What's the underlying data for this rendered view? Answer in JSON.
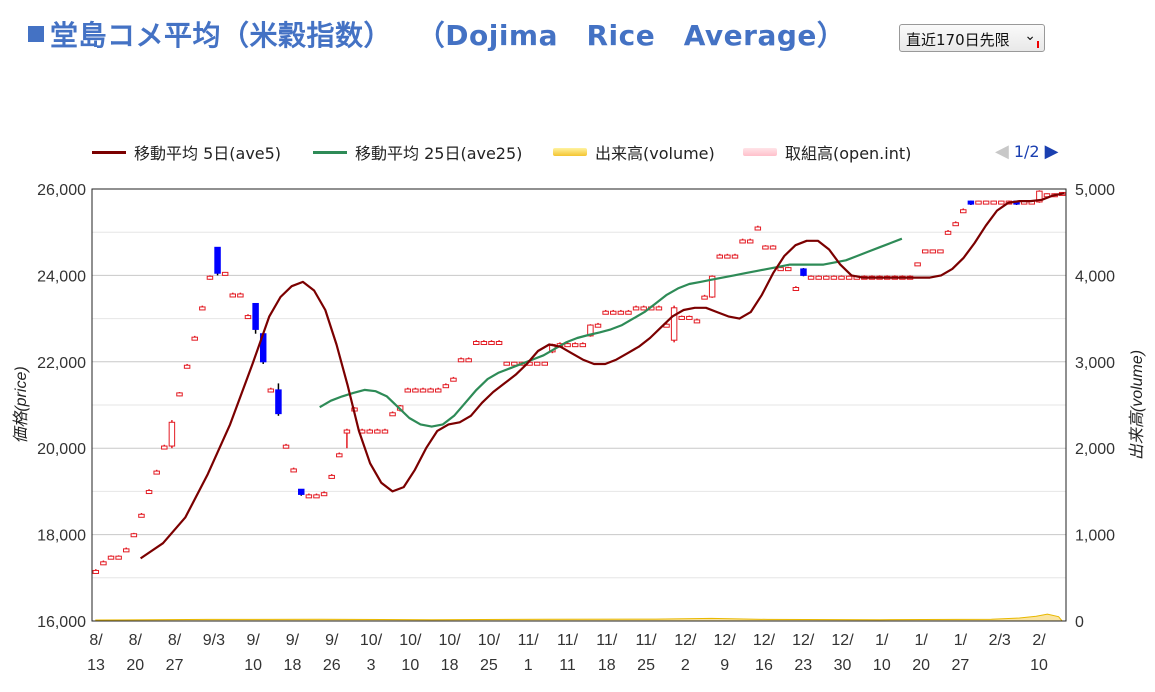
{
  "header": {
    "title": "堂島コメ平均（米穀指数）　 （Dojima　Rice　Average）",
    "period_select": "直近170日先限"
  },
  "legend": {
    "ave5": "移動平均 5日(ave5)",
    "ave25": "移動平均 25日(ave25)",
    "volume": "出来高(volume)",
    "openint": "取組高(open.int)"
  },
  "pager": {
    "page": "1/2"
  },
  "colors": {
    "ave5": "#7B0000",
    "ave25": "#2E8B57",
    "up": "#E31B23",
    "down": "#0000FF",
    "volume": "#F4C430",
    "openint": "#FFC0CB",
    "title": "#4472C4"
  },
  "chart_data": {
    "type": "candlestick",
    "ylabel_left": "価格(price)",
    "ylabel_right": "出来高(volume)",
    "ylim": [
      16000,
      26000
    ],
    "ylim_right": [
      0,
      5000
    ],
    "y_ticks": [
      "16,000",
      "18,000",
      "20,000",
      "22,000",
      "24,000",
      "26,000"
    ],
    "y_ticks_right": [
      "0",
      "1,000",
      "2,000",
      "3,000",
      "4,000",
      "5,000"
    ],
    "x_ticks": [
      [
        "8/",
        "13"
      ],
      [
        "8/",
        "20"
      ],
      [
        "8/",
        "27"
      ],
      [
        "9/3",
        ""
      ],
      [
        "9/",
        "10"
      ],
      [
        "9/",
        "18"
      ],
      [
        "9/",
        "26"
      ],
      [
        "10/",
        "3"
      ],
      [
        "10/",
        "10"
      ],
      [
        "10/",
        "18"
      ],
      [
        "10/",
        "25"
      ],
      [
        "11/",
        "1"
      ],
      [
        "11/",
        "11"
      ],
      [
        "11/",
        "18"
      ],
      [
        "11/",
        "25"
      ],
      [
        "12/",
        "2"
      ],
      [
        "12/",
        "9"
      ],
      [
        "12/",
        "16"
      ],
      [
        "12/",
        "23"
      ],
      [
        "12/",
        "30"
      ],
      [
        "1/",
        "10"
      ],
      [
        "1/",
        "20"
      ],
      [
        "1/",
        "27"
      ],
      [
        "2/3",
        ""
      ],
      [
        "2/",
        "10"
      ]
    ],
    "candles": [
      [
        17130,
        17170,
        17100,
        17200
      ],
      [
        17330,
        17370,
        17300,
        17400
      ],
      [
        17480,
        17500,
        17470,
        17520
      ],
      [
        17480,
        17500,
        17470,
        17520
      ],
      [
        17630,
        17670,
        17600,
        17700
      ],
      [
        17980,
        18020,
        17960,
        18040
      ],
      [
        18430,
        18470,
        18400,
        18500
      ],
      [
        18980,
        19020,
        18950,
        19050
      ],
      [
        19430,
        19470,
        19400,
        19500
      ],
      [
        20000,
        20050,
        19980,
        20080
      ],
      [
        20050,
        20600,
        20000,
        20650
      ],
      [
        21230,
        21280,
        21200,
        21300
      ],
      [
        21880,
        21920,
        21850,
        21950
      ],
      [
        22530,
        22570,
        22500,
        22600
      ],
      [
        23230,
        23270,
        23200,
        23300
      ],
      [
        23930,
        23980,
        23900,
        24000
      ],
      [
        24650,
        24050,
        24000,
        24650
      ],
      [
        24030,
        24070,
        24000,
        24080
      ],
      [
        23530,
        23570,
        23500,
        23600
      ],
      [
        23530,
        23570,
        23500,
        23600
      ],
      [
        23030,
        23070,
        23000,
        23100
      ],
      [
        23350,
        22750,
        22650,
        23350
      ],
      [
        22650,
        22000,
        21950,
        22650
      ],
      [
        21330,
        21370,
        21300,
        21400
      ],
      [
        21350,
        20800,
        20750,
        21500
      ],
      [
        20030,
        20070,
        20000,
        20100
      ],
      [
        19480,
        19520,
        19450,
        19550
      ],
      [
        19050,
        18930,
        18900,
        19050
      ],
      [
        18880,
        18920,
        18850,
        18950
      ],
      [
        18880,
        18920,
        18850,
        18950
      ],
      [
        18930,
        18970,
        18900,
        19000
      ],
      [
        19330,
        19370,
        19300,
        19400
      ],
      [
        19830,
        19870,
        19800,
        19900
      ],
      [
        20380,
        20420,
        20000,
        20450
      ],
      [
        20900,
        20930,
        20880,
        20950
      ],
      [
        20380,
        20420,
        20350,
        20450
      ],
      [
        20380,
        20420,
        20350,
        20450
      ],
      [
        20380,
        20420,
        20350,
        20450
      ],
      [
        20380,
        20420,
        20350,
        20450
      ],
      [
        20780,
        20820,
        20750,
        20850
      ],
      [
        20880,
        20980,
        20850,
        21000
      ],
      [
        21330,
        21370,
        21300,
        21400
      ],
      [
        21330,
        21370,
        21300,
        21400
      ],
      [
        21330,
        21370,
        21300,
        21400
      ],
      [
        21330,
        21370,
        21300,
        21400
      ],
      [
        21330,
        21370,
        21300,
        21400
      ],
      [
        21430,
        21470,
        21400,
        21500
      ],
      [
        21580,
        21620,
        21550,
        21650
      ],
      [
        22030,
        22070,
        22000,
        22100
      ],
      [
        22030,
        22070,
        22000,
        22100
      ],
      [
        22430,
        22470,
        22400,
        22500
      ],
      [
        22430,
        22470,
        22400,
        22500
      ],
      [
        22430,
        22470,
        22400,
        22500
      ],
      [
        22430,
        22470,
        22400,
        22500
      ],
      [
        21950,
        21990,
        21930,
        22000
      ],
      [
        21950,
        21990,
        21930,
        22000
      ],
      [
        21950,
        21990,
        21930,
        22000
      ],
      [
        21950,
        21990,
        21930,
        22000
      ],
      [
        21950,
        21990,
        21930,
        22000
      ],
      [
        21950,
        21990,
        21930,
        22000
      ],
      [
        22230,
        22400,
        22200,
        22420
      ],
      [
        22380,
        22420,
        22350,
        22450
      ],
      [
        22380,
        22420,
        22350,
        22450
      ],
      [
        22380,
        22420,
        22350,
        22450
      ],
      [
        22380,
        22420,
        22350,
        22450
      ],
      [
        22600,
        22850,
        22580,
        22870
      ],
      [
        22830,
        22870,
        22800,
        22900
      ],
      [
        23130,
        23170,
        23100,
        23200
      ],
      [
        23130,
        23170,
        23100,
        23200
      ],
      [
        23130,
        23170,
        23100,
        23200
      ],
      [
        23130,
        23170,
        23100,
        23200
      ],
      [
        23230,
        23270,
        23200,
        23300
      ],
      [
        23230,
        23270,
        23200,
        23300
      ],
      [
        23230,
        23270,
        23200,
        23300
      ],
      [
        23230,
        23270,
        23200,
        23300
      ],
      [
        22830,
        22870,
        22800,
        22900
      ],
      [
        22500,
        23250,
        22450,
        23300
      ],
      [
        23000,
        23050,
        22980,
        23070
      ],
      [
        23000,
        23050,
        22980,
        23070
      ],
      [
        22930,
        22970,
        22900,
        23000
      ],
      [
        23480,
        23520,
        23450,
        23550
      ],
      [
        23500,
        23980,
        23480,
        24000
      ],
      [
        24430,
        24470,
        24400,
        24500
      ],
      [
        24430,
        24470,
        24400,
        24500
      ],
      [
        24430,
        24470,
        24400,
        24500
      ],
      [
        24780,
        24820,
        24750,
        24850
      ],
      [
        24780,
        24820,
        24750,
        24850
      ],
      [
        25080,
        25120,
        25050,
        25150
      ],
      [
        24650,
        24680,
        24620,
        24700
      ],
      [
        24650,
        24680,
        24620,
        24700
      ],
      [
        24150,
        24180,
        24120,
        24200
      ],
      [
        24150,
        24180,
        24120,
        24200
      ],
      [
        23680,
        23720,
        23650,
        23750
      ],
      [
        24150,
        24000,
        23980,
        24170
      ],
      [
        23950,
        23980,
        23920,
        24000
      ],
      [
        23950,
        23980,
        23920,
        24000
      ],
      [
        23950,
        23980,
        23920,
        24000
      ],
      [
        23950,
        23980,
        23920,
        24000
      ],
      [
        23950,
        23980,
        23920,
        24000
      ],
      [
        23950,
        23980,
        23920,
        24000
      ],
      [
        23950,
        23980,
        23920,
        24000
      ],
      [
        23950,
        23980,
        23920,
        24000
      ],
      [
        23950,
        23980,
        23920,
        24000
      ],
      [
        23950,
        23980,
        23920,
        24000
      ],
      [
        23950,
        23980,
        23920,
        24000
      ],
      [
        23950,
        23980,
        23920,
        24000
      ],
      [
        23950,
        23980,
        23920,
        24000
      ],
      [
        23950,
        23980,
        23920,
        24000
      ],
      [
        24250,
        24290,
        24230,
        24300
      ],
      [
        24550,
        24590,
        24530,
        24600
      ],
      [
        24550,
        24590,
        24530,
        24600
      ],
      [
        24550,
        24590,
        24530,
        24600
      ],
      [
        24980,
        25020,
        24950,
        25050
      ],
      [
        25180,
        25220,
        25150,
        25250
      ],
      [
        25480,
        25520,
        25450,
        25550
      ],
      [
        25720,
        25650,
        25630,
        25730
      ],
      [
        25680,
        25720,
        25650,
        25730
      ],
      [
        25680,
        25720,
        25650,
        25730
      ],
      [
        25680,
        25720,
        25650,
        25730
      ],
      [
        25680,
        25720,
        25650,
        25730
      ],
      [
        25680,
        25720,
        25650,
        25730
      ],
      [
        25720,
        25650,
        25630,
        25730
      ],
      [
        25680,
        25720,
        25650,
        25730
      ],
      [
        25680,
        25720,
        25650,
        25730
      ],
      [
        25700,
        25950,
        25680,
        25970
      ],
      [
        25850,
        25890,
        25830,
        25900
      ],
      [
        25850,
        25890,
        25830,
        25900
      ],
      [
        25880,
        25920,
        25860,
        25930
      ]
    ],
    "ave5": [
      [
        8,
        17450
      ],
      [
        12,
        17800
      ],
      [
        16,
        18400
      ],
      [
        20,
        19400
      ],
      [
        24,
        20550
      ],
      [
        28,
        21950
      ],
      [
        31,
        23050
      ],
      [
        33,
        23500
      ],
      [
        35,
        23750
      ],
      [
        37,
        23850
      ],
      [
        39,
        23650
      ],
      [
        41,
        23200
      ],
      [
        43,
        22400
      ],
      [
        45,
        21450
      ],
      [
        47,
        20400
      ],
      [
        49,
        19650
      ],
      [
        51,
        19200
      ],
      [
        53,
        19000
      ],
      [
        55,
        19100
      ],
      [
        57,
        19500
      ],
      [
        59,
        20000
      ],
      [
        61,
        20400
      ],
      [
        63,
        20550
      ],
      [
        65,
        20600
      ],
      [
        67,
        20750
      ],
      [
        69,
        21050
      ],
      [
        71,
        21300
      ],
      [
        73,
        21500
      ],
      [
        75,
        21700
      ],
      [
        77,
        21950
      ],
      [
        79,
        22250
      ],
      [
        81,
        22400
      ],
      [
        83,
        22350
      ],
      [
        85,
        22200
      ],
      [
        87,
        22050
      ],
      [
        89,
        21950
      ],
      [
        91,
        21950
      ],
      [
        93,
        22050
      ],
      [
        95,
        22200
      ],
      [
        97,
        22350
      ],
      [
        99,
        22550
      ],
      [
        101,
        22800
      ],
      [
        103,
        23050
      ],
      [
        105,
        23200
      ],
      [
        107,
        23250
      ],
      [
        109,
        23250
      ],
      [
        111,
        23150
      ],
      [
        113,
        23050
      ],
      [
        115,
        23000
      ],
      [
        117,
        23150
      ],
      [
        119,
        23550
      ],
      [
        121,
        24050
      ],
      [
        123,
        24450
      ],
      [
        125,
        24700
      ],
      [
        127,
        24800
      ],
      [
        129,
        24800
      ],
      [
        131,
        24600
      ],
      [
        133,
        24250
      ],
      [
        135,
        24000
      ],
      [
        137,
        23950
      ],
      [
        139,
        23950
      ],
      [
        141,
        23950
      ],
      [
        143,
        23950
      ],
      [
        145,
        23950
      ],
      [
        147,
        23950
      ],
      [
        149,
        23950
      ],
      [
        151,
        24000
      ],
      [
        153,
        24150
      ],
      [
        155,
        24400
      ],
      [
        157,
        24750
      ],
      [
        159,
        25150
      ],
      [
        161,
        25500
      ],
      [
        163,
        25680
      ],
      [
        165,
        25720
      ],
      [
        167,
        25720
      ],
      [
        169,
        25750
      ],
      [
        171,
        25850
      ],
      [
        173,
        25900
      ]
    ],
    "ave25": [
      [
        40,
        20950
      ],
      [
        42,
        21100
      ],
      [
        44,
        21200
      ],
      [
        46,
        21280
      ],
      [
        48,
        21350
      ],
      [
        50,
        21320
      ],
      [
        52,
        21200
      ],
      [
        54,
        20950
      ],
      [
        56,
        20700
      ],
      [
        58,
        20550
      ],
      [
        60,
        20500
      ],
      [
        62,
        20550
      ],
      [
        64,
        20750
      ],
      [
        66,
        21050
      ],
      [
        68,
        21350
      ],
      [
        70,
        21600
      ],
      [
        72,
        21750
      ],
      [
        74,
        21850
      ],
      [
        76,
        21950
      ],
      [
        78,
        22050
      ],
      [
        80,
        22150
      ],
      [
        82,
        22300
      ],
      [
        84,
        22450
      ],
      [
        86,
        22550
      ],
      [
        88,
        22620
      ],
      [
        90,
        22680
      ],
      [
        92,
        22750
      ],
      [
        94,
        22850
      ],
      [
        96,
        23000
      ],
      [
        98,
        23150
      ],
      [
        100,
        23350
      ],
      [
        102,
        23550
      ],
      [
        104,
        23700
      ],
      [
        106,
        23800
      ],
      [
        108,
        23850
      ],
      [
        110,
        23900
      ],
      [
        112,
        23950
      ],
      [
        114,
        24000
      ],
      [
        116,
        24050
      ],
      [
        118,
        24100
      ],
      [
        120,
        24150
      ],
      [
        122,
        24200
      ],
      [
        124,
        24250
      ],
      [
        126,
        24250
      ],
      [
        128,
        24250
      ],
      [
        130,
        24250
      ],
      [
        132,
        24300
      ],
      [
        134,
        24350
      ],
      [
        136,
        24450
      ],
      [
        138,
        24550
      ],
      [
        140,
        24650
      ],
      [
        142,
        24750
      ],
      [
        144,
        24850
      ]
    ],
    "volume": [
      [
        0,
        12
      ],
      [
        20,
        18
      ],
      [
        40,
        20
      ],
      [
        60,
        15
      ],
      [
        80,
        20
      ],
      [
        100,
        22
      ],
      [
        110,
        30
      ],
      [
        120,
        18
      ],
      [
        140,
        15
      ],
      [
        160,
        20
      ],
      [
        165,
        35
      ],
      [
        168,
        55
      ],
      [
        170,
        80
      ],
      [
        172,
        50
      ]
    ]
  }
}
